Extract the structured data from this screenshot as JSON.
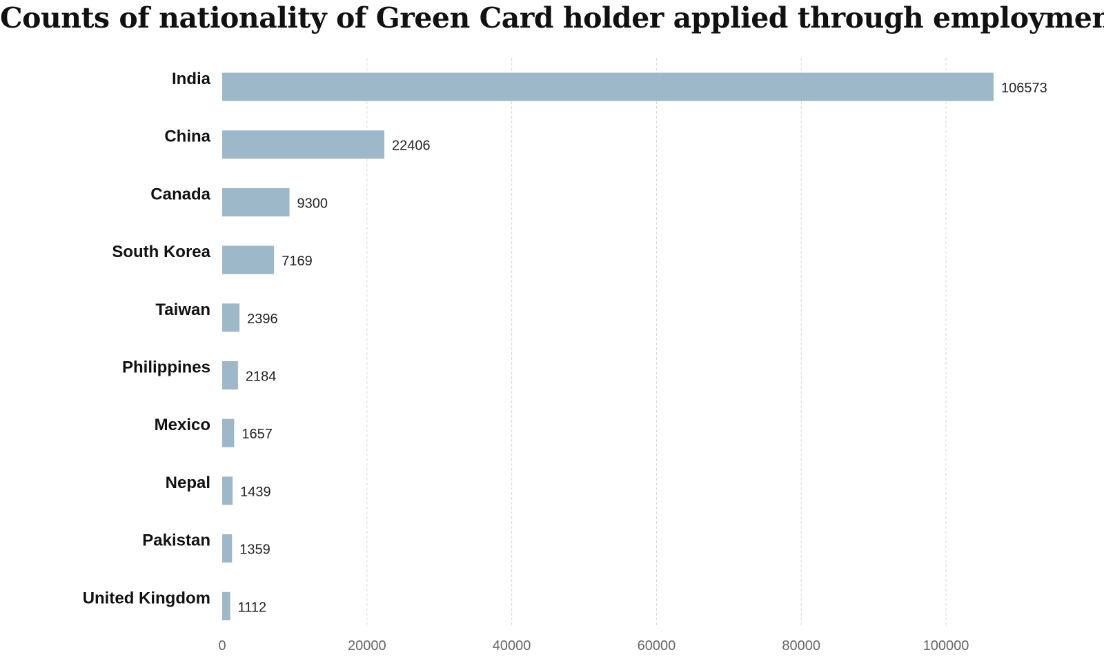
{
  "chart_data": {
    "type": "bar",
    "orientation": "horizontal",
    "title": "Counts of nationality of Green Card holder applied through employment",
    "xlabel": "",
    "ylabel": "",
    "xlim": [
      0,
      115000
    ],
    "x_ticks": [
      0,
      20000,
      40000,
      60000,
      80000,
      100000
    ],
    "x_tick_labels": [
      "0",
      "20000",
      "40000",
      "60000",
      "80000",
      "100000"
    ],
    "grid": true,
    "bar_color": "#9db8c9",
    "categories": [
      "India",
      "China",
      "Canada",
      "South Korea",
      "Taiwan",
      "Philippines",
      "Mexico",
      "Nepal",
      "Pakistan",
      "United Kingdom"
    ],
    "values": [
      106573,
      22406,
      9300,
      7169,
      2396,
      2184,
      1657,
      1439,
      1359,
      1112
    ],
    "value_labels": [
      "106573",
      "22406",
      "9300",
      "7169",
      "2396",
      "2184",
      "1657",
      "1439",
      "1359",
      "1112"
    ]
  }
}
